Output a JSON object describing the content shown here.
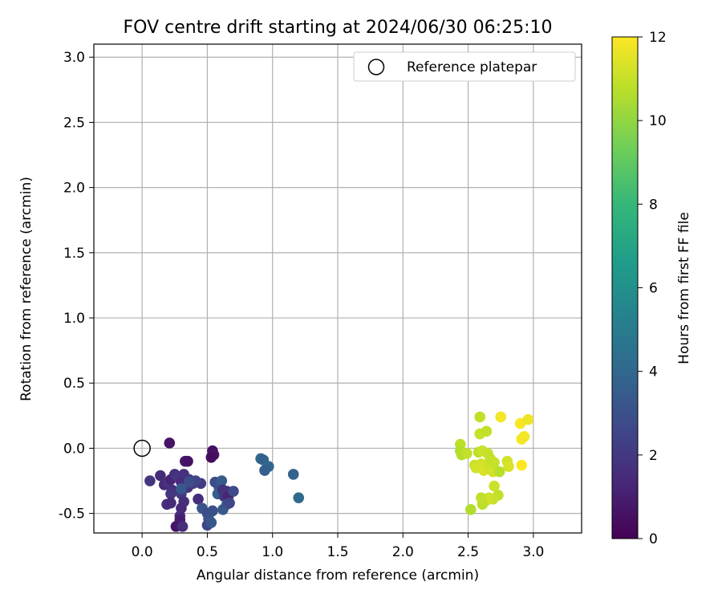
{
  "chart_data": {
    "type": "scatter",
    "title": "FOV centre drift starting at 2024/06/30 06:25:10",
    "xlabel": "Angular distance from reference (arcmin)",
    "ylabel": "Rotation from reference (arcmin)",
    "xlim": [
      -0.37,
      3.37
    ],
    "ylim": [
      -0.65,
      3.1
    ],
    "xticks": [
      "0.0",
      "0.5",
      "1.0",
      "1.5",
      "2.0",
      "2.5",
      "3.0"
    ],
    "xtick_values": [
      0.0,
      0.5,
      1.0,
      1.5,
      2.0,
      2.5,
      3.0
    ],
    "yticks": [
      "-0.5",
      "0.0",
      "0.5",
      "1.0",
      "1.5",
      "2.0",
      "2.5",
      "3.0"
    ],
    "ytick_values": [
      -0.5,
      0.0,
      0.5,
      1.0,
      1.5,
      2.0,
      2.5,
      3.0
    ],
    "grid": true,
    "legend": {
      "entries": [
        "Reference platepar"
      ],
      "placement": "top-right"
    },
    "reference_point": {
      "x": 0.0,
      "y": 0.0,
      "label": "Reference platepar"
    },
    "colorbar": {
      "label": "Hours from first FF file",
      "range": [
        0,
        12
      ],
      "tick_values": [
        0,
        2,
        4,
        6,
        8,
        10,
        12
      ],
      "ticks": [
        "0",
        "2",
        "4",
        "6",
        "8",
        "10",
        "12"
      ],
      "colormap": "viridis",
      "colors": [
        "#440154",
        "#482878",
        "#3e4989",
        "#31688e",
        "#26828e",
        "#1f9e89",
        "#35b779",
        "#6ece58",
        "#b5de2b",
        "#fde725"
      ]
    },
    "series": [
      {
        "points": [
          [
            0.21,
            0.04,
            0.7
          ],
          [
            0.54,
            -0.02,
            0.5
          ],
          [
            0.55,
            -0.05,
            0.6
          ],
          [
            0.33,
            -0.1,
            0.8
          ],
          [
            0.35,
            -0.1,
            0.6
          ],
          [
            0.53,
            -0.07,
            0.4
          ],
          [
            0.06,
            -0.25,
            1.8
          ],
          [
            0.14,
            -0.21,
            1.5
          ],
          [
            0.17,
            -0.28,
            1.4
          ],
          [
            0.2,
            -0.26,
            1.8
          ],
          [
            0.22,
            -0.24,
            1.2
          ],
          [
            0.25,
            -0.2,
            1.6
          ],
          [
            0.27,
            -0.22,
            1.9
          ],
          [
            0.3,
            -0.26,
            1.4
          ],
          [
            0.32,
            -0.2,
            1.7
          ],
          [
            0.36,
            -0.24,
            2.0
          ],
          [
            0.23,
            -0.32,
            1.6
          ],
          [
            0.22,
            -0.35,
            1.9
          ],
          [
            0.19,
            -0.43,
            1.6
          ],
          [
            0.22,
            -0.42,
            1.5
          ],
          [
            0.3,
            -0.35,
            2.2
          ],
          [
            0.32,
            -0.41,
            1.6
          ],
          [
            0.3,
            -0.46,
            1.4
          ],
          [
            0.29,
            -0.52,
            1.4
          ],
          [
            0.29,
            -0.55,
            1.0
          ],
          [
            0.26,
            -0.6,
            0.7
          ],
          [
            0.31,
            -0.6,
            1.6
          ],
          [
            0.35,
            -0.3,
            1.8
          ],
          [
            0.39,
            -0.27,
            2.2
          ],
          [
            0.43,
            -0.39,
            1.5
          ],
          [
            0.45,
            -0.27,
            2.1
          ],
          [
            0.41,
            -0.25,
            2.5
          ],
          [
            0.36,
            -0.26,
            2.9
          ],
          [
            0.3,
            -0.31,
            3.3
          ],
          [
            0.46,
            -0.46,
            3.2
          ],
          [
            0.5,
            -0.5,
            2.8
          ],
          [
            0.51,
            -0.54,
            3.1
          ],
          [
            0.5,
            -0.59,
            2.5
          ],
          [
            0.53,
            -0.57,
            3.3
          ],
          [
            0.54,
            -0.48,
            3.0
          ],
          [
            0.56,
            -0.26,
            2.8
          ],
          [
            0.59,
            -0.3,
            3.0
          ],
          [
            0.58,
            -0.35,
            3.6
          ],
          [
            0.61,
            -0.25,
            3.5
          ],
          [
            0.62,
            -0.32,
            1.7
          ],
          [
            0.63,
            -0.37,
            2.0
          ],
          [
            0.65,
            -0.33,
            1.8
          ],
          [
            0.66,
            -0.37,
            1.2
          ],
          [
            0.62,
            -0.47,
            3.4
          ],
          [
            0.65,
            -0.43,
            3.2
          ],
          [
            0.67,
            -0.42,
            2.6
          ],
          [
            0.7,
            -0.33,
            2.7
          ],
          [
            0.91,
            -0.08,
            4.0
          ],
          [
            0.93,
            -0.09,
            3.8
          ],
          [
            0.97,
            -0.14,
            3.9
          ],
          [
            0.94,
            -0.17,
            3.6
          ],
          [
            1.16,
            -0.2,
            3.8
          ],
          [
            1.2,
            -0.38,
            4.1
          ],
          [
            2.44,
            0.03,
            10.8
          ],
          [
            2.44,
            -0.02,
            10.6
          ],
          [
            2.45,
            -0.05,
            10.7
          ],
          [
            2.49,
            -0.04,
            10.9
          ],
          [
            2.55,
            -0.13,
            11.0
          ],
          [
            2.56,
            -0.15,
            11.2
          ],
          [
            2.58,
            -0.03,
            10.8
          ],
          [
            2.59,
            0.24,
            10.9
          ],
          [
            2.59,
            0.11,
            11.0
          ],
          [
            2.61,
            -0.02,
            11.1
          ],
          [
            2.6,
            -0.12,
            11.2
          ],
          [
            2.62,
            -0.17,
            11.3
          ],
          [
            2.64,
            0.13,
            10.9
          ],
          [
            2.65,
            -0.04,
            11.0
          ],
          [
            2.66,
            -0.14,
            11.1
          ],
          [
            2.67,
            -0.08,
            10.9
          ],
          [
            2.69,
            -0.18,
            11.2
          ],
          [
            2.7,
            -0.11,
            11.0
          ],
          [
            2.7,
            -0.29,
            11.1
          ],
          [
            2.74,
            -0.18,
            10.7
          ],
          [
            2.73,
            -0.36,
            10.9
          ],
          [
            2.69,
            -0.39,
            11.0
          ],
          [
            2.66,
            -0.38,
            11.1
          ],
          [
            2.64,
            -0.4,
            11.2
          ],
          [
            2.61,
            -0.43,
            10.8
          ],
          [
            2.6,
            -0.38,
            10.9
          ],
          [
            2.52,
            -0.47,
            10.6
          ],
          [
            2.75,
            0.24,
            11.8
          ],
          [
            2.8,
            -0.1,
            11.2
          ],
          [
            2.81,
            -0.14,
            11.3
          ],
          [
            2.9,
            0.19,
            11.9
          ],
          [
            2.91,
            0.07,
            11.9
          ],
          [
            2.93,
            0.09,
            11.8
          ],
          [
            2.96,
            0.22,
            11.7
          ],
          [
            2.91,
            -0.13,
            12.0
          ]
        ]
      }
    ]
  }
}
